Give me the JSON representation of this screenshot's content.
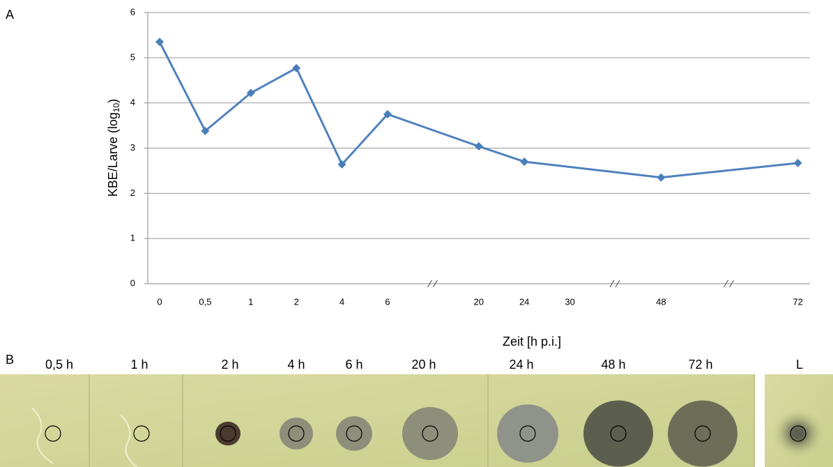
{
  "chart_data": {
    "type": "line",
    "panel_label": "A",
    "y_label": "KBE/Larve (log",
    "y_label_sub": "10",
    "y_label_end": ")",
    "x_label": "Zeit [h p.i.]",
    "categories": [
      "0",
      "0,5",
      "1",
      "2",
      "4",
      "6",
      null,
      "20",
      "24",
      "30",
      null,
      "48",
      null,
      null,
      "72"
    ],
    "series": [
      {
        "color": "#4f81bd",
        "values": [
          5.35,
          3.38,
          4.22,
          4.77,
          2.64,
          3.75,
          null,
          3.04,
          2.7,
          null,
          null,
          2.35,
          null,
          null,
          2.67
        ]
      }
    ],
    "connect_gaps": true,
    "ylim": [
      0,
      6
    ],
    "yticks": [
      0,
      1,
      2,
      3,
      4,
      5,
      6
    ],
    "grid": true
  },
  "panel_b": {
    "label": "B",
    "images": [
      "0,5 h",
      "1 h",
      "2 h",
      "4 h",
      "6 h",
      "20 h",
      "24 h",
      "48 h",
      "72 h",
      "L"
    ]
  }
}
